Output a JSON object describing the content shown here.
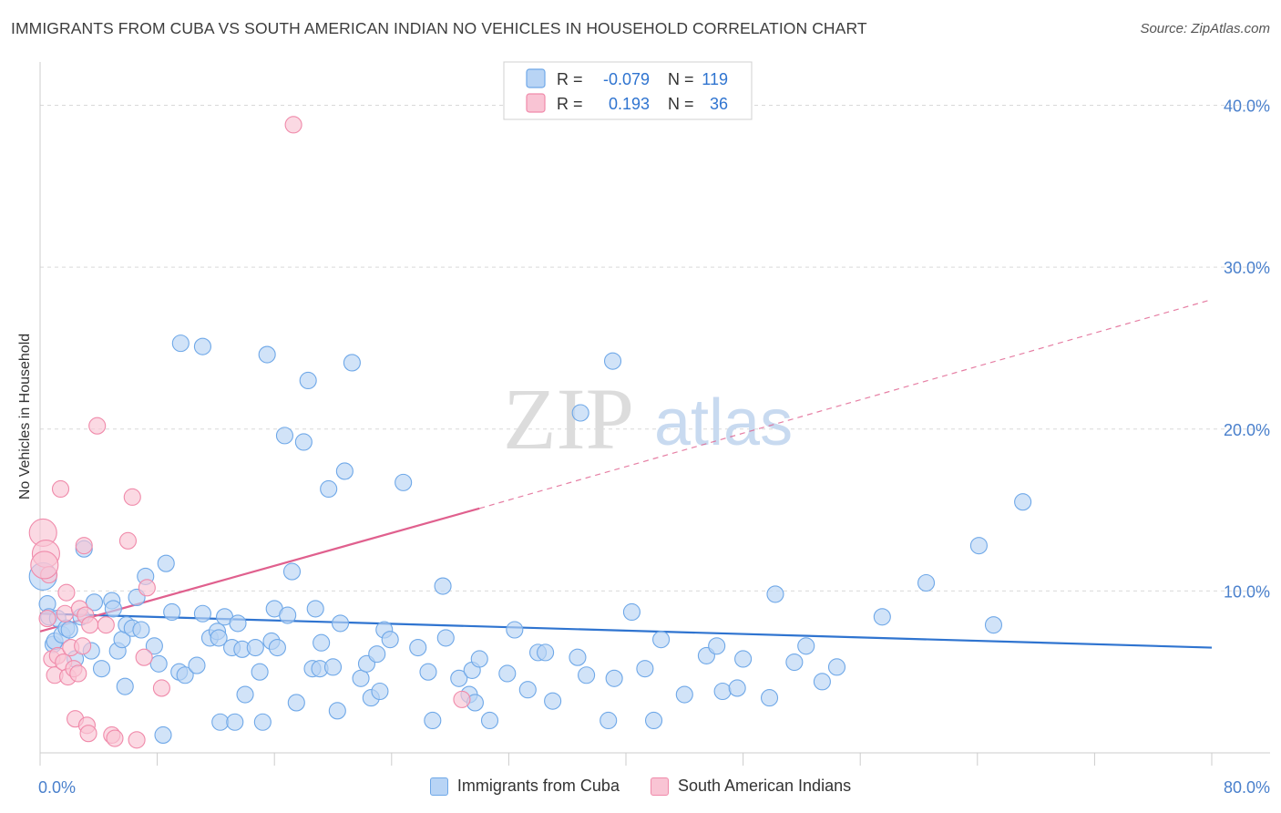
{
  "header": {
    "title": "IMMIGRANTS FROM CUBA VS SOUTH AMERICAN INDIAN NO VEHICLES IN HOUSEHOLD CORRELATION CHART",
    "source": "Source: ZipAtlas.com"
  },
  "watermark": {
    "zip": "ZIP",
    "atlas": "atlas"
  },
  "legend_stats": {
    "rows": [
      {
        "r_label": "R =",
        "r_value": "-0.079",
        "n_label": "N =",
        "n_value": "119",
        "color": "#6fa8e8"
      },
      {
        "r_label": "R =",
        "r_value": "0.193",
        "n_label": "N =",
        "n_value": "36",
        "color": "#f08aaa"
      }
    ]
  },
  "bottom_legend": {
    "items": [
      {
        "label": "Immigrants from Cuba",
        "color": "#6fa8e8"
      },
      {
        "label": "South American Indians",
        "color": "#f08aaa"
      }
    ]
  },
  "colors": {
    "blue_fill": "#b8d4f5",
    "blue_stroke": "#6fa8e8",
    "blue_line": "#2f74d0",
    "pink_fill": "#f9c4d4",
    "pink_stroke": "#f08aaa",
    "pink_line": "#e0608e",
    "tick_text": "#4a80cc",
    "grid": "#d9d9d9"
  },
  "chart_data": {
    "type": "scatter",
    "title": "IMMIGRANTS FROM CUBA VS SOUTH AMERICAN INDIAN NO VEHICLES IN HOUSEHOLD CORRELATION CHART",
    "xlabel": "",
    "ylabel": "No Vehicles in Household",
    "xlim": [
      0,
      80
    ],
    "ylim": [
      0,
      42
    ],
    "x_tick_labels": [
      "0.0%",
      "80.0%"
    ],
    "y_ticks": [
      10,
      20,
      30,
      40
    ],
    "y_tick_labels": [
      "10.0%",
      "20.0%",
      "30.0%",
      "40.0%"
    ],
    "grid": true,
    "legend_position": "top-center",
    "series": [
      {
        "name": "Immigrants from Cuba",
        "points": [
          [
            0.2,
            10.9
          ],
          [
            0.5,
            9.2
          ],
          [
            0.6,
            8.4
          ],
          [
            0.9,
            6.7
          ],
          [
            1.0,
            6.9
          ],
          [
            1.2,
            8.3
          ],
          [
            1.5,
            7.3
          ],
          [
            1.8,
            7.7
          ],
          [
            2.0,
            7.6
          ],
          [
            2.4,
            5.8
          ],
          [
            2.8,
            8.4
          ],
          [
            3.0,
            12.6
          ],
          [
            3.5,
            6.3
          ],
          [
            3.7,
            9.3
          ],
          [
            4.2,
            5.2
          ],
          [
            4.9,
            9.4
          ],
          [
            5.0,
            8.9
          ],
          [
            5.3,
            6.3
          ],
          [
            5.6,
            7.0
          ],
          [
            5.8,
            4.1
          ],
          [
            5.9,
            7.9
          ],
          [
            6.3,
            7.7
          ],
          [
            6.6,
            9.6
          ],
          [
            6.9,
            7.6
          ],
          [
            7.2,
            10.9
          ],
          [
            7.8,
            6.6
          ],
          [
            8.1,
            5.5
          ],
          [
            8.4,
            1.1
          ],
          [
            8.6,
            11.7
          ],
          [
            9.0,
            8.7
          ],
          [
            9.5,
            5.0
          ],
          [
            9.6,
            25.3
          ],
          [
            9.9,
            4.8
          ],
          [
            10.7,
            5.4
          ],
          [
            11.1,
            25.1
          ],
          [
            11.1,
            8.6
          ],
          [
            11.6,
            7.1
          ],
          [
            12.1,
            7.5
          ],
          [
            12.2,
            7.1
          ],
          [
            12.3,
            1.9
          ],
          [
            12.6,
            8.4
          ],
          [
            13.1,
            6.5
          ],
          [
            13.3,
            1.9
          ],
          [
            13.5,
            8.0
          ],
          [
            13.8,
            6.4
          ],
          [
            14.0,
            3.6
          ],
          [
            14.7,
            6.5
          ],
          [
            15.2,
            1.9
          ],
          [
            15.0,
            5.0
          ],
          [
            15.5,
            24.6
          ],
          [
            15.8,
            6.9
          ],
          [
            16.0,
            8.9
          ],
          [
            16.2,
            6.5
          ],
          [
            16.7,
            19.6
          ],
          [
            16.9,
            8.5
          ],
          [
            17.2,
            11.2
          ],
          [
            17.5,
            3.1
          ],
          [
            18.0,
            19.2
          ],
          [
            18.3,
            23.0
          ],
          [
            18.6,
            5.2
          ],
          [
            18.8,
            8.9
          ],
          [
            19.1,
            5.2
          ],
          [
            19.2,
            6.8
          ],
          [
            19.7,
            16.3
          ],
          [
            20.0,
            5.3
          ],
          [
            20.3,
            2.6
          ],
          [
            20.5,
            8.0
          ],
          [
            20.8,
            17.4
          ],
          [
            21.3,
            24.1
          ],
          [
            21.9,
            4.6
          ],
          [
            22.3,
            5.5
          ],
          [
            22.6,
            3.4
          ],
          [
            23.0,
            6.1
          ],
          [
            23.2,
            3.8
          ],
          [
            23.5,
            7.6
          ],
          [
            23.9,
            7.0
          ],
          [
            24.8,
            16.7
          ],
          [
            25.8,
            6.5
          ],
          [
            26.5,
            5.0
          ],
          [
            26.8,
            2.0
          ],
          [
            27.5,
            10.3
          ],
          [
            27.7,
            7.1
          ],
          [
            28.6,
            4.6
          ],
          [
            29.3,
            3.6
          ],
          [
            29.5,
            5.1
          ],
          [
            29.7,
            3.1
          ],
          [
            30.0,
            5.8
          ],
          [
            30.7,
            2.0
          ],
          [
            31.9,
            4.9
          ],
          [
            32.4,
            7.6
          ],
          [
            33.3,
            3.9
          ],
          [
            34.0,
            6.2
          ],
          [
            34.5,
            6.2
          ],
          [
            35.0,
            3.2
          ],
          [
            36.7,
            5.9
          ],
          [
            36.9,
            21.0
          ],
          [
            37.3,
            4.8
          ],
          [
            38.8,
            2.0
          ],
          [
            39.1,
            24.2
          ],
          [
            39.2,
            4.6
          ],
          [
            40.4,
            8.7
          ],
          [
            41.3,
            5.2
          ],
          [
            41.9,
            2.0
          ],
          [
            42.4,
            7.0
          ],
          [
            44.0,
            3.6
          ],
          [
            45.5,
            6.0
          ],
          [
            46.2,
            6.6
          ],
          [
            46.6,
            3.8
          ],
          [
            47.6,
            4.0
          ],
          [
            48.0,
            5.8
          ],
          [
            49.8,
            3.4
          ],
          [
            50.2,
            9.8
          ],
          [
            51.5,
            5.6
          ],
          [
            52.3,
            6.6
          ],
          [
            53.4,
            4.4
          ],
          [
            54.4,
            5.3
          ],
          [
            57.5,
            8.4
          ],
          [
            60.5,
            10.5
          ],
          [
            64.1,
            12.8
          ],
          [
            65.1,
            7.9
          ],
          [
            67.1,
            15.5
          ]
        ],
        "trend": {
          "x": [
            0,
            80
          ],
          "y": [
            8.6,
            6.5
          ]
        }
      },
      {
        "name": "South American Indians",
        "points": [
          [
            0.2,
            13.6
          ],
          [
            0.4,
            12.3
          ],
          [
            0.5,
            8.3
          ],
          [
            0.6,
            11.0
          ],
          [
            0.8,
            5.8
          ],
          [
            1.0,
            4.8
          ],
          [
            1.2,
            6.0
          ],
          [
            1.4,
            16.3
          ],
          [
            1.6,
            5.6
          ],
          [
            1.7,
            8.6
          ],
          [
            1.8,
            9.9
          ],
          [
            1.9,
            4.7
          ],
          [
            2.1,
            6.5
          ],
          [
            2.3,
            5.2
          ],
          [
            2.4,
            2.1
          ],
          [
            2.6,
            4.9
          ],
          [
            2.7,
            8.9
          ],
          [
            2.9,
            6.6
          ],
          [
            3.0,
            12.8
          ],
          [
            3.1,
            8.5
          ],
          [
            3.2,
            1.7
          ],
          [
            3.3,
            1.2
          ],
          [
            3.4,
            7.9
          ],
          [
            3.9,
            20.2
          ],
          [
            4.5,
            7.9
          ],
          [
            4.9,
            1.1
          ],
          [
            5.1,
            0.9
          ],
          [
            6.0,
            13.1
          ],
          [
            6.3,
            15.8
          ],
          [
            6.6,
            0.8
          ],
          [
            7.1,
            5.9
          ],
          [
            7.3,
            10.2
          ],
          [
            8.3,
            4.0
          ],
          [
            17.3,
            38.8
          ],
          [
            28.8,
            3.3
          ],
          [
            0.3,
            11.6
          ]
        ],
        "trend": {
          "x": [
            0,
            30
          ],
          "y": [
            7.5,
            15.1
          ]
        },
        "trend_extended": {
          "x": [
            30,
            80
          ],
          "y": [
            15.1,
            28.0
          ]
        }
      }
    ]
  }
}
